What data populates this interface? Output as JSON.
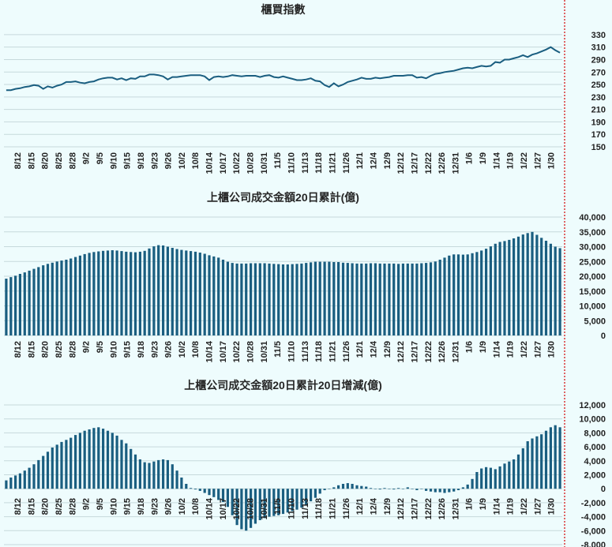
{
  "colors": {
    "background": "#eefcfd",
    "series": "#1a5e80",
    "grid": "#c6d9dc",
    "marker": "#d40000"
  },
  "chart_data": [
    {
      "type": "line",
      "title": "櫃買指數",
      "y_ticks": [
        "150",
        "170",
        "190",
        "210",
        "230",
        "250",
        "270",
        "290",
        "310",
        "330"
      ],
      "ylim": [
        150,
        340
      ],
      "x_ticks": [
        "8/12",
        "8/15",
        "8/20",
        "8/25",
        "8/28",
        "9/2",
        "9/5",
        "9/10",
        "9/15",
        "9/18",
        "9/23",
        "9/26",
        "10/2",
        "10/8",
        "10/14",
        "10/17",
        "10/22",
        "10/28",
        "10/31",
        "11/5",
        "11/10",
        "11/13",
        "11/18",
        "11/21",
        "11/26",
        "12/1",
        "12/4",
        "12/9",
        "12/12",
        "12/17",
        "12/22",
        "12/26",
        "12/31",
        "1/6",
        "1/9",
        "1/14",
        "1/19",
        "1/22",
        "1/27",
        "1/30"
      ],
      "values": [
        241,
        241,
        243,
        244,
        246,
        247,
        249,
        248,
        243,
        247,
        245,
        248,
        250,
        254,
        254,
        255,
        253,
        252,
        254,
        255,
        258,
        260,
        261,
        261,
        258,
        260,
        257,
        260,
        259,
        263,
        263,
        266,
        266,
        265,
        263,
        258,
        262,
        262,
        263,
        264,
        265,
        265,
        265,
        263,
        257,
        262,
        263,
        262,
        263,
        265,
        264,
        263,
        264,
        264,
        264,
        262,
        264,
        265,
        262,
        261,
        263,
        261,
        259,
        257,
        257,
        258,
        260,
        256,
        255,
        249,
        246,
        252,
        247,
        250,
        254,
        256,
        258,
        261,
        259,
        259,
        261,
        260,
        261,
        262,
        264,
        264,
        264,
        265,
        265,
        261,
        262,
        260,
        264,
        267,
        268,
        270,
        271,
        272,
        274,
        276,
        277,
        276,
        278,
        280,
        279,
        280,
        286,
        285,
        290,
        290,
        292,
        294,
        297,
        294,
        298,
        300,
        303,
        306,
        310,
        305,
        301
      ]
    },
    {
      "type": "bar",
      "title": "上櫃公司成交金額20日累計(億)",
      "y_ticks": [
        "0",
        "5,000",
        "10,000",
        "15,000",
        "20,000",
        "25,000",
        "30,000",
        "35,000",
        "40,000"
      ],
      "ylim": [
        0,
        40000
      ],
      "x_ticks": [
        "8/12",
        "8/15",
        "8/20",
        "8/25",
        "8/28",
        "9/2",
        "9/5",
        "9/10",
        "9/15",
        "9/18",
        "9/23",
        "9/26",
        "10/2",
        "10/8",
        "10/14",
        "10/17",
        "10/22",
        "10/28",
        "10/31",
        "11/5",
        "11/10",
        "11/13",
        "11/18",
        "11/21",
        "11/26",
        "12/1",
        "12/4",
        "12/9",
        "12/12",
        "12/17",
        "12/22",
        "12/26",
        "12/31",
        "1/6",
        "1/9",
        "1/14",
        "1/19",
        "1/22",
        "1/27",
        "1/30"
      ],
      "values": [
        19200,
        19700,
        20200,
        20800,
        21300,
        21900,
        22500,
        23100,
        23700,
        24200,
        24600,
        25000,
        25300,
        25600,
        26000,
        26500,
        27000,
        27500,
        27900,
        28200,
        28400,
        28600,
        28700,
        28800,
        28700,
        28500,
        28300,
        28200,
        28100,
        28300,
        28600,
        29400,
        30100,
        30500,
        30400,
        30000,
        29600,
        29200,
        28900,
        28700,
        28500,
        28300,
        28000,
        27600,
        27100,
        26700,
        26300,
        25600,
        24900,
        24500,
        24300,
        24300,
        24300,
        24400,
        24400,
        24400,
        24400,
        24300,
        24200,
        24100,
        24000,
        24000,
        24100,
        24200,
        24300,
        24500,
        24700,
        24900,
        24900,
        24900,
        24900,
        24800,
        24800,
        24600,
        24500,
        24400,
        24300,
        24300,
        24300,
        24400,
        24400,
        24300,
        24300,
        24300,
        24300,
        24200,
        24300,
        24300,
        24300,
        24300,
        24400,
        24500,
        24700,
        25000,
        25600,
        26300,
        27000,
        27400,
        27400,
        27300,
        27400,
        27800,
        28200,
        28700,
        29300,
        30100,
        31000,
        31600,
        31900,
        32300,
        32800,
        33400,
        34100,
        34600,
        35000,
        34000,
        33000,
        32000,
        31000,
        30000,
        29500
      ]
    },
    {
      "type": "bar",
      "title": "上櫃公司成交金額20日累計20日增減(億)",
      "y_ticks": [
        "-8,000",
        "-6,000",
        "-4,000",
        "-2,000",
        "0",
        "2,000",
        "4,000",
        "6,000",
        "8,000",
        "10,000",
        "12,000"
      ],
      "ylim": [
        -8000,
        12000
      ],
      "x_ticks": [
        "8/12",
        "8/15",
        "8/20",
        "8/25",
        "8/28",
        "9/2",
        "9/5",
        "9/10",
        "9/15",
        "9/18",
        "9/23",
        "9/26",
        "10/2",
        "10/8",
        "10/14",
        "10/17",
        "10/22",
        "10/28",
        "10/31",
        "11/5",
        "11/10",
        "11/13",
        "11/18",
        "11/21",
        "11/26",
        "12/1",
        "12/4",
        "12/9",
        "12/12",
        "12/17",
        "12/22",
        "12/26",
        "12/31",
        "1/6",
        "1/9",
        "1/14",
        "1/19",
        "1/22",
        "1/27",
        "1/30"
      ],
      "values": [
        1200,
        1600,
        1900,
        2200,
        2600,
        3000,
        3500,
        4100,
        4700,
        5300,
        5900,
        6300,
        6700,
        7000,
        7300,
        7700,
        8000,
        8300,
        8500,
        8700,
        8800,
        8600,
        8300,
        8000,
        7600,
        7000,
        6500,
        5700,
        4900,
        4200,
        3800,
        3700,
        3900,
        4100,
        4200,
        4100,
        3500,
        2600,
        1600,
        700,
        100,
        -100,
        -300,
        -600,
        -900,
        -1200,
        -1600,
        -1900,
        -2600,
        -3800,
        -5200,
        -5800,
        -6000,
        -5600,
        -5000,
        -4500,
        -4200,
        -4000,
        -3900,
        -3800,
        -3600,
        -3400,
        -3200,
        -3000,
        -2700,
        -2300,
        -1800,
        -1300,
        -700,
        -200,
        0,
        200,
        500,
        700,
        800,
        700,
        500,
        400,
        300,
        100,
        0,
        -100,
        100,
        0,
        -100,
        100,
        0,
        200,
        0,
        -200,
        0,
        -300,
        -400,
        -500,
        -500,
        -600,
        -500,
        -400,
        -200,
        200,
        600,
        1400,
        2400,
        2900,
        3100,
        3000,
        2800,
        3200,
        3600,
        3900,
        4200,
        4900,
        5800,
        6800,
        7200,
        7500,
        7800,
        8300,
        8800,
        9100,
        8800
      ]
    }
  ]
}
